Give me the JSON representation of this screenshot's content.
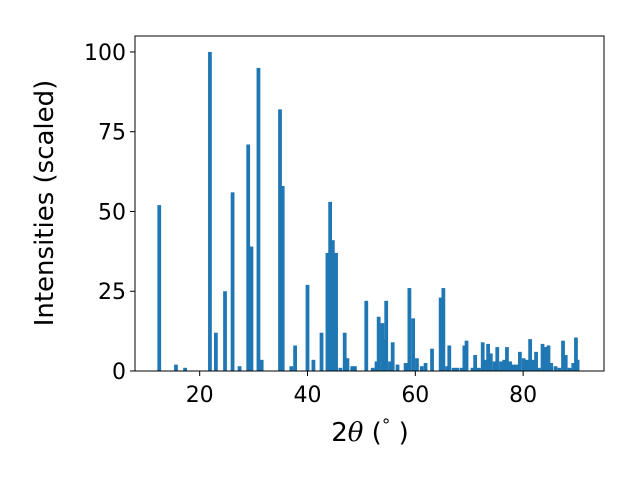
{
  "chart_data": {
    "type": "bar",
    "xlabel_parts": {
      "pre": "2",
      "theta": "θ",
      "post": " (",
      "degree": "°",
      "close": " )"
    },
    "ylabel": "Intensities (scaled)",
    "xlim": [
      8,
      95
    ],
    "ylim": [
      0,
      105
    ],
    "xticks": [
      20,
      40,
      60,
      80
    ],
    "yticks": [
      0,
      25,
      50,
      75,
      100
    ],
    "bar_width": 0.7,
    "color": "#1f77b4",
    "x": [
      12.5,
      15.6,
      17.3,
      21.9,
      23.0,
      24.7,
      26.1,
      27.4,
      29.0,
      29.6,
      30.9,
      31.5,
      34.9,
      35.4,
      37.0,
      37.7,
      40.0,
      41.1,
      42.6,
      43.7,
      44.2,
      44.7,
      45.3,
      46.1,
      46.9,
      47.4,
      48.3,
      48.8,
      50.9,
      52.1,
      52.8,
      53.2,
      53.9,
      54.3,
      54.6,
      55.3,
      55.8,
      56.7,
      58.2,
      58.9,
      59.6,
      60.3,
      61.2,
      61.9,
      63.1,
      64.7,
      65.2,
      65.9,
      66.3,
      67.1,
      67.8,
      68.6,
      69.1,
      69.5,
      70.6,
      71.1,
      71.8,
      72.5,
      73.1,
      73.5,
      74.0,
      74.7,
      75.2,
      75.9,
      76.5,
      77.0,
      77.6,
      78.2,
      78.8,
      79.4,
      80.1,
      80.7,
      81.3,
      81.9,
      82.4,
      82.9,
      83.6,
      84.1,
      84.7,
      85.2,
      86.0,
      86.7,
      87.4,
      87.9,
      88.6,
      89.3,
      89.8,
      90.1
    ],
    "values": [
      52,
      2,
      1,
      100,
      12,
      25,
      56,
      1.5,
      71,
      39,
      95,
      3.5,
      82,
      58,
      1.5,
      8,
      27,
      3.5,
      12,
      37,
      53,
      41,
      37,
      1,
      12,
      4,
      1.5,
      1.5,
      22,
      1,
      3,
      17,
      15,
      10,
      22,
      3,
      9,
      2,
      2.5,
      26,
      16.5,
      4,
      1.5,
      2.5,
      7,
      23,
      26,
      1.5,
      8,
      1,
      1,
      1,
      8,
      9.5,
      1,
      5,
      1,
      9,
      3.5,
      8.5,
      5.5,
      3,
      7.5,
      3,
      3.5,
      7.5,
      3,
      2,
      2,
      6,
      4,
      3.5,
      10,
      3.5,
      6,
      1,
      8.5,
      7.5,
      8,
      2.5,
      1.5,
      1,
      9.5,
      5,
      1,
      2.5,
      10.5,
      3.5
    ]
  }
}
